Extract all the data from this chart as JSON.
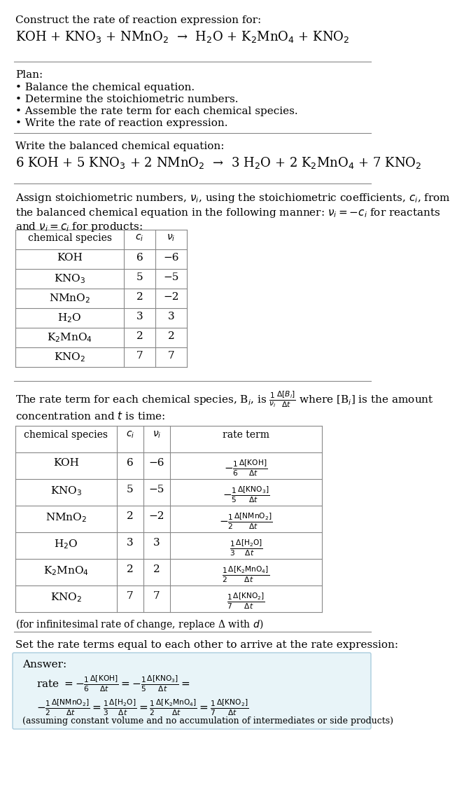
{
  "bg_color": "#ffffff",
  "text_color": "#000000",
  "font_family": "DejaVu Serif",
  "title_line1": "Construct the rate of reaction expression for:",
  "reaction_unbalanced": "KOH + KNO$_3$ + NMnO$_2$  →  H$_2$O + K$_2$MnO$_4$ + KNO$_2$",
  "plan_header": "Plan:",
  "plan_items": [
    "• Balance the chemical equation.",
    "• Determine the stoichiometric numbers.",
    "• Assemble the rate term for each chemical species.",
    "• Write the rate of reaction expression."
  ],
  "balanced_header": "Write the balanced chemical equation:",
  "reaction_balanced": "6 KOH + 5 KNO$_3$ + 2 NMnO$_2$  →  3 H$_2$O + 2 K$_2$MnO$_4$ + 7 KNO$_2$",
  "stoich_intro": "Assign stoichiometric numbers, $\\nu_i$, using the stoichiometric coefficients, $c_i$, from\nthe balanced chemical equation in the following manner: $\\nu_i = -c_i$ for reactants\nand $\\nu_i = c_i$ for products:",
  "table1_headers": [
    "chemical species",
    "$c_i$",
    "$\\nu_i$"
  ],
  "table1_rows": [
    [
      "KOH",
      "6",
      "−6"
    ],
    [
      "KNO$_3$",
      "5",
      "−5"
    ],
    [
      "NMnO$_2$",
      "2",
      "−2"
    ],
    [
      "H$_2$O",
      "3",
      "3"
    ],
    [
      "K$_2$MnO$_4$",
      "2",
      "2"
    ],
    [
      "KNO$_2$",
      "7",
      "7"
    ]
  ],
  "rate_term_intro": "The rate term for each chemical species, B$_i$, is $\\frac{1}{\\nu_i}\\frac{\\Delta[B_i]}{\\Delta t}$ where [B$_i$] is the amount\nconcentration and $t$ is time:",
  "table2_headers": [
    "chemical species",
    "$c_i$",
    "$\\nu_i$",
    "rate term"
  ],
  "table2_rows": [
    [
      "KOH",
      "6",
      "−6",
      "$-\\frac{1}{6}\\frac{\\Delta[\\mathrm{KOH}]}{\\Delta t}$"
    ],
    [
      "KNO$_3$",
      "5",
      "−5",
      "$-\\frac{1}{5}\\frac{\\Delta[\\mathrm{KNO_3}]}{\\Delta t}$"
    ],
    [
      "NMnO$_2$",
      "2",
      "−2",
      "$-\\frac{1}{2}\\frac{\\Delta[\\mathrm{NMnO_2}]}{\\Delta t}$"
    ],
    [
      "H$_2$O",
      "3",
      "3",
      "$\\frac{1}{3}\\frac{\\Delta[\\mathrm{H_2O}]}{\\Delta t}$"
    ],
    [
      "K$_2$MnO$_4$",
      "2",
      "2",
      "$\\frac{1}{2}\\frac{\\Delta[\\mathrm{K_2MnO_4}]}{\\Delta t}$"
    ],
    [
      "KNO$_2$",
      "7",
      "7",
      "$\\frac{1}{7}\\frac{\\Delta[\\mathrm{KNO_2}]}{\\Delta t}$"
    ]
  ],
  "infinitesimal_note": "(for infinitesimal rate of change, replace Δ with $d$)",
  "set_rate_text": "Set the rate terms equal to each other to arrive at the rate expression:",
  "answer_label": "Answer:",
  "answer_box_color": "#e8f4f8",
  "answer_line1": "rate $= -\\frac{1}{6}\\frac{\\Delta[\\mathrm{KOH}]}{\\Delta t} = -\\frac{1}{5}\\frac{\\Delta[\\mathrm{KNO_3}]}{\\Delta t} =$",
  "answer_line2": "$-\\frac{1}{2}\\frac{\\Delta[\\mathrm{NMnO_2}]}{\\Delta t} = \\frac{1}{3}\\frac{\\Delta[\\mathrm{H_2O}]}{\\Delta t} = \\frac{1}{2}\\frac{\\Delta[\\mathrm{K_2MnO_4}]}{\\Delta t} = \\frac{1}{7}\\frac{\\Delta[\\mathrm{KNO_2}]}{\\Delta t}$",
  "answer_footnote": "(assuming constant volume and no accumulation of intermediates or side products)"
}
